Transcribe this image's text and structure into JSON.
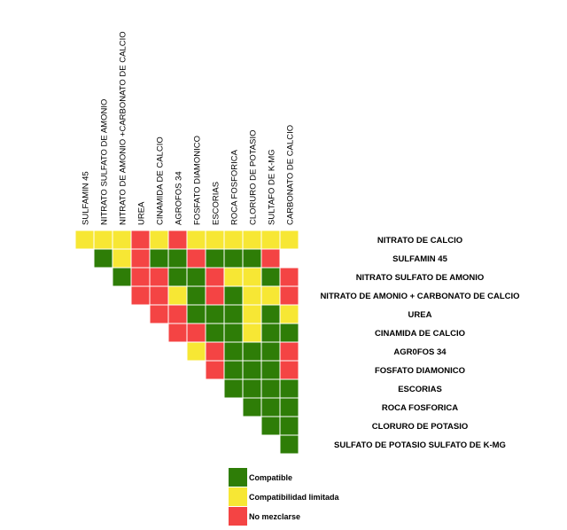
{
  "chart_data": {
    "type": "heatmap",
    "columns": [
      "SULFAMIN 45",
      "NITRATO SULFATO DE AMONIO",
      "NITRATO DE AMONIO +CARBONATO DE CALCIO",
      "UREA",
      "CINAMIDA DE CALCIO",
      "AGROFOS 34",
      "FOSFATO DIAMONICO",
      "ESCORIAS",
      "ROCA FOSFORICA",
      "CLORURO DE POTASIO",
      "SULTAFO DE K-MG",
      "CARBONATO DE CALCIO"
    ],
    "rows": [
      "NITRATO DE CALCIO",
      "SULFAMIN 45",
      "NITRATO SULFATO DE AMONIO",
      "NITRATO DE AMONIO + CARBONATO DE CALCIO",
      "UREA",
      "CINAMIDA DE CALCIO",
      "AGR0FOS 34",
      "FOSFATO DIAMONICO",
      "ESCORIAS",
      "ROCA FOSFORICA",
      "CLORURO DE POTASIO",
      "SULFATO DE POTASIO SULFATO DE K-MG"
    ],
    "cells": [
      [
        "L",
        "L",
        "L",
        "N",
        "L",
        "N",
        "L",
        "L",
        "L",
        "L",
        "L",
        "L"
      ],
      [
        "",
        "C",
        "L",
        "N",
        "C",
        "C",
        "N",
        "C",
        "C",
        "C",
        "N",
        ""
      ],
      [
        "",
        "",
        "C",
        "N",
        "N",
        "C",
        "C",
        "N",
        "L",
        "L",
        "C",
        "N"
      ],
      [
        "",
        "",
        "",
        "N",
        "N",
        "L",
        "C",
        "N",
        "C",
        "L",
        "L",
        "N"
      ],
      [
        "",
        "",
        "",
        "",
        "N",
        "N",
        "C",
        "C",
        "C",
        "L",
        "C",
        "L"
      ],
      [
        "",
        "",
        "",
        "",
        "",
        "N",
        "N",
        "C",
        "C",
        "L",
        "C",
        "C"
      ],
      [
        "",
        "",
        "",
        "",
        "",
        "",
        "L",
        "N",
        "C",
        "C",
        "C",
        "N"
      ],
      [
        "",
        "",
        "",
        "",
        "",
        "",
        "",
        "N",
        "C",
        "C",
        "C",
        "N"
      ],
      [
        "",
        "",
        "",
        "",
        "",
        "",
        "",
        "",
        "C",
        "C",
        "C",
        "C"
      ],
      [
        "",
        "",
        "",
        "",
        "",
        "",
        "",
        "",
        "",
        "C",
        "C",
        "C"
      ],
      [
        "",
        "",
        "",
        "",
        "",
        "",
        "",
        "",
        "",
        "",
        "C",
        "C"
      ],
      [
        "",
        "",
        "",
        "",
        "",
        "",
        "",
        "",
        "",
        "",
        "",
        "C"
      ]
    ],
    "legend": [
      {
        "code": "C",
        "label": "Compatible",
        "color": "#2e7d07"
      },
      {
        "code": "L",
        "label": "Compatibilidad limitada",
        "color": "#f7e734"
      },
      {
        "code": "N",
        "label": "No mezclarse",
        "color": "#f44444"
      }
    ],
    "legend_position": "bottom"
  }
}
